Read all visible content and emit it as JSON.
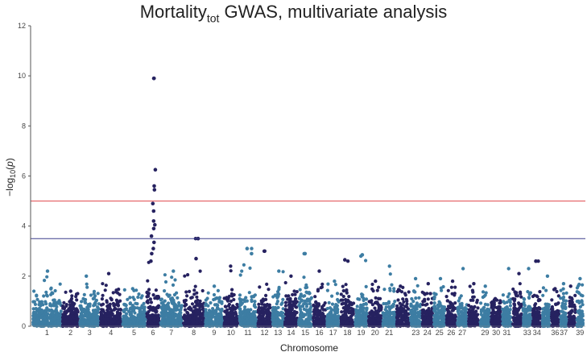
{
  "chart_data": {
    "type": "scatter",
    "title": {
      "prefix": "Mortality",
      "subscript": "tot",
      "suffix": " GWAS, multivariate analysis"
    },
    "xlabel": "Chromosome",
    "ylabel": "−log10(p)",
    "ylim": [
      0,
      12
    ],
    "yticks": [
      0,
      2,
      4,
      6,
      8,
      10,
      12
    ],
    "grid": false,
    "legend": "none",
    "thresholds": [
      {
        "value": 5.0,
        "color": "#e0474c"
      },
      {
        "value": 3.5,
        "color": "#3b3f8c"
      }
    ],
    "colors": [
      "#3d7da3",
      "#262260"
    ],
    "chromosomes": [
      "1",
      "2",
      "3",
      "4",
      "5",
      "6",
      "7",
      "8",
      "9",
      "10",
      "11",
      "12",
      "13",
      "14",
      "15",
      "16",
      "17",
      "18",
      "19",
      "20",
      "21",
      "22",
      "23",
      "24",
      "25",
      "26",
      "27",
      "28",
      "29",
      "30",
      "31",
      "32",
      "33",
      "34",
      "35",
      "36",
      "37",
      "38",
      "39"
    ],
    "chromosome_labels": [
      "1",
      "2",
      "3",
      "4",
      "5",
      "6",
      "7",
      "8",
      "9",
      "10",
      "11",
      "12",
      "13",
      "14",
      "15",
      "16",
      "17",
      "18",
      "19",
      "20",
      "21",
      "23",
      "24",
      "25",
      "26",
      "27",
      "29",
      "30",
      "31",
      "33",
      "34",
      "36",
      "37",
      "39"
    ],
    "chromosome_max": [
      2.2,
      1.4,
      2.0,
      2.1,
      1.5,
      9.9,
      2.2,
      3.5,
      1.6,
      2.4,
      3.1,
      3.0,
      2.2,
      2.0,
      2.9,
      2.2,
      1.8,
      2.6,
      2.8,
      1.8,
      2.4,
      1.6,
      1.9,
      1.7,
      1.9,
      1.8,
      2.3,
      1.7,
      1.6,
      1.1,
      2.3,
      2.1,
      2.3,
      2.6,
      2.0,
      1.5,
      1.7,
      1.6,
      1.9
    ],
    "highlight_points": [
      {
        "chromosome": "6",
        "y": 9.9
      },
      {
        "chromosome": "6",
        "y": 6.25
      },
      {
        "chromosome": "6",
        "y": 5.6
      },
      {
        "chromosome": "6",
        "y": 5.45
      },
      {
        "chromosome": "6",
        "y": 4.9
      },
      {
        "chromosome": "6",
        "y": 4.6
      },
      {
        "chromosome": "6",
        "y": 4.2
      },
      {
        "chromosome": "6",
        "y": 4.05
      },
      {
        "chromosome": "6",
        "y": 3.9
      },
      {
        "chromosome": "6",
        "y": 3.6
      },
      {
        "chromosome": "6",
        "y": 3.35
      },
      {
        "chromosome": "6",
        "y": 3.1
      },
      {
        "chromosome": "6",
        "y": 2.9
      },
      {
        "chromosome": "6",
        "y": 2.6
      },
      {
        "chromosome": "8",
        "y": 3.5
      },
      {
        "chromosome": "8",
        "y": 2.7
      },
      {
        "chromosome": "11",
        "y": 3.1
      },
      {
        "chromosome": "11",
        "y": 2.9
      },
      {
        "chromosome": "12",
        "y": 3.0
      },
      {
        "chromosome": "15",
        "y": 2.9
      },
      {
        "chromosome": "18",
        "y": 2.65
      },
      {
        "chromosome": "19",
        "y": 2.85
      },
      {
        "chromosome": "34",
        "y": 2.6
      }
    ]
  }
}
